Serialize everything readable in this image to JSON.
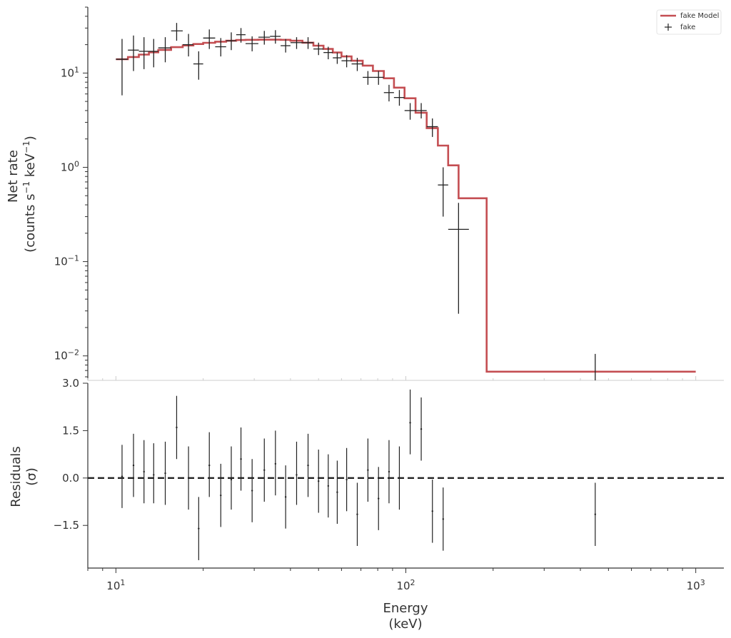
{
  "colors": {
    "model": "#c44e52",
    "data": "#222222",
    "axis": "#333333",
    "zero": "#222222"
  },
  "chart_data": [
    {
      "type": "line",
      "panel": "spectrum",
      "title": "",
      "xlabel": "",
      "ylabel_line1": "Net rate",
      "ylabel_line2": "(counts s$^{-1}$ keV$^{-1}$)",
      "ylabel_line2_display": {
        "pre": "(counts s",
        "sup1": "−1",
        "mid": " keV",
        "sup2": "−1",
        "post": ")"
      },
      "xscale": "log",
      "yscale": "log",
      "xlim": [
        8,
        1250
      ],
      "ylim": [
        0.0055,
        50
      ],
      "yticks": [
        {
          "value": 0.01,
          "base": "10",
          "exp": "−2"
        },
        {
          "value": 0.1,
          "base": "10",
          "exp": "−1"
        },
        {
          "value": 1,
          "base": "10",
          "exp": "0"
        },
        {
          "value": 10,
          "base": "10",
          "exp": "1"
        }
      ],
      "legend": {
        "position": "top-right",
        "entries": [
          "fake Model",
          "fake"
        ]
      },
      "series": [
        {
          "name": "fake Model",
          "kind": "step",
          "edges": [
            10,
            11,
            12,
            13,
            14,
            15.5,
            17,
            18.5,
            20,
            22,
            24,
            26,
            28,
            31,
            34,
            37,
            40,
            44,
            48,
            52,
            56,
            60,
            65,
            71,
            77,
            84,
            91,
            99,
            108,
            118,
            129,
            140,
            152,
            165,
            190,
            1000
          ],
          "values": [
            14.0,
            14.8,
            15.7,
            16.6,
            17.6,
            18.8,
            19.6,
            20.3,
            20.9,
            21.5,
            22.0,
            22.4,
            22.5,
            22.6,
            22.6,
            22.5,
            22.0,
            21.0,
            19.5,
            18.0,
            16.5,
            15.0,
            13.5,
            12.0,
            10.5,
            8.8,
            7.0,
            5.4,
            3.8,
            2.6,
            1.7,
            1.05,
            0.47,
            0.47,
            0.0068
          ]
        },
        {
          "name": "fake",
          "kind": "errorbar",
          "points": [
            {
              "x": 10.5,
              "y": 14.0,
              "xlo": 10.0,
              "xhi": 11.0,
              "ylo": 5.8,
              "yhi": 23.0
            },
            {
              "x": 11.5,
              "y": 17.5,
              "xlo": 11.0,
              "xhi": 12.0,
              "ylo": 10.5,
              "yhi": 25.0
            },
            {
              "x": 12.5,
              "y": 17.0,
              "xlo": 12.0,
              "xhi": 13.0,
              "ylo": 11.0,
              "yhi": 24.0
            },
            {
              "x": 13.5,
              "y": 17.0,
              "xlo": 13.0,
              "xhi": 14.0,
              "ylo": 11.5,
              "yhi": 23.0
            },
            {
              "x": 14.8,
              "y": 18.5,
              "xlo": 14.0,
              "xhi": 15.5,
              "ylo": 13.0,
              "yhi": 24.0
            },
            {
              "x": 16.2,
              "y": 28.0,
              "xlo": 15.5,
              "xhi": 17.0,
              "ylo": 22.0,
              "yhi": 34.0
            },
            {
              "x": 17.8,
              "y": 20.0,
              "xlo": 17.0,
              "xhi": 18.5,
              "ylo": 15.0,
              "yhi": 26.0
            },
            {
              "x": 19.3,
              "y": 12.5,
              "xlo": 18.5,
              "xhi": 20.0,
              "ylo": 8.5,
              "yhi": 17.0
            },
            {
              "x": 21.0,
              "y": 23.5,
              "xlo": 20.0,
              "xhi": 22.0,
              "ylo": 18.0,
              "yhi": 29.0
            },
            {
              "x": 23.0,
              "y": 19.0,
              "xlo": 22.0,
              "xhi": 24.0,
              "ylo": 15.0,
              "yhi": 23.5
            },
            {
              "x": 25.0,
              "y": 22.0,
              "xlo": 24.0,
              "xhi": 26.0,
              "ylo": 17.5,
              "yhi": 27.0
            },
            {
              "x": 27.0,
              "y": 25.5,
              "xlo": 26.0,
              "xhi": 28.0,
              "ylo": 21.0,
              "yhi": 30.0
            },
            {
              "x": 29.5,
              "y": 20.5,
              "xlo": 28.0,
              "xhi": 31.0,
              "ylo": 17.0,
              "yhi": 24.5
            },
            {
              "x": 32.5,
              "y": 24.0,
              "xlo": 31.0,
              "xhi": 34.0,
              "ylo": 20.0,
              "yhi": 28.0
            },
            {
              "x": 35.5,
              "y": 24.5,
              "xlo": 34.0,
              "xhi": 37.0,
              "ylo": 20.5,
              "yhi": 28.5
            },
            {
              "x": 38.5,
              "y": 19.5,
              "xlo": 37.0,
              "xhi": 40.0,
              "ylo": 16.5,
              "yhi": 23.0
            },
            {
              "x": 42.0,
              "y": 21.0,
              "xlo": 40.0,
              "xhi": 44.0,
              "ylo": 18.0,
              "yhi": 24.0
            },
            {
              "x": 46.0,
              "y": 21.0,
              "xlo": 44.0,
              "xhi": 48.0,
              "ylo": 18.0,
              "yhi": 24.0
            },
            {
              "x": 50.0,
              "y": 18.0,
              "xlo": 48.0,
              "xhi": 52.0,
              "ylo": 15.5,
              "yhi": 21.0
            },
            {
              "x": 54.0,
              "y": 16.5,
              "xlo": 52.0,
              "xhi": 56.0,
              "ylo": 14.0,
              "yhi": 19.0
            },
            {
              "x": 58.0,
              "y": 14.5,
              "xlo": 56.0,
              "xhi": 60.0,
              "ylo": 12.5,
              "yhi": 16.5
            },
            {
              "x": 62.5,
              "y": 13.5,
              "xlo": 60.0,
              "xhi": 65.0,
              "ylo": 11.5,
              "yhi": 15.5
            },
            {
              "x": 68.0,
              "y": 12.5,
              "xlo": 65.0,
              "xhi": 71.0,
              "ylo": 10.5,
              "yhi": 14.5
            },
            {
              "x": 74.0,
              "y": 9.0,
              "xlo": 71.0,
              "xhi": 77.0,
              "ylo": 7.5,
              "yhi": 10.5
            },
            {
              "x": 80.5,
              "y": 9.0,
              "xlo": 77.0,
              "xhi": 84.0,
              "ylo": 7.5,
              "yhi": 10.5
            },
            {
              "x": 87.5,
              "y": 6.2,
              "xlo": 84.0,
              "xhi": 91.0,
              "ylo": 5.0,
              "yhi": 7.5
            },
            {
              "x": 95.0,
              "y": 5.5,
              "xlo": 91.0,
              "xhi": 99.0,
              "ylo": 4.5,
              "yhi": 6.6
            },
            {
              "x": 103.5,
              "y": 4.0,
              "xlo": 99.0,
              "xhi": 108.0,
              "ylo": 3.2,
              "yhi": 4.8
            },
            {
              "x": 113.0,
              "y": 4.0,
              "xlo": 108.0,
              "xhi": 118.0,
              "ylo": 3.3,
              "yhi": 4.8
            },
            {
              "x": 123.5,
              "y": 2.7,
              "xlo": 118.0,
              "xhi": 129.0,
              "ylo": 2.1,
              "yhi": 3.3
            },
            {
              "x": 134.5,
              "y": 0.65,
              "xlo": 129.0,
              "xhi": 140.0,
              "ylo": 0.3,
              "yhi": 1.0
            },
            {
              "x": 152.0,
              "y": 0.22,
              "xlo": 140.0,
              "xhi": 165.0,
              "ylo": 0.028,
              "yhi": 0.42
            },
            {
              "x": 450.0,
              "y": 0.0045,
              "xlo": 450.0,
              "xhi": 450.0,
              "ylo": 0.0045,
              "yhi": 0.0105
            }
          ]
        }
      ]
    },
    {
      "type": "scatter",
      "panel": "residuals",
      "title": "",
      "xlabel_line1": "Energy",
      "xlabel_line2": "(keV)",
      "ylabel_line1": "Residuals",
      "ylabel_line2": "(σ)",
      "xscale": "log",
      "xlim": [
        8,
        1250
      ],
      "ylim": [
        -2.85,
        3.0
      ],
      "yticks": [
        {
          "value": -1.5,
          "label": "−1.5"
        },
        {
          "value": 0.0,
          "label": "0.0"
        },
        {
          "value": 1.5,
          "label": "1.5"
        },
        {
          "value": 3.0,
          "label": "3.0"
        }
      ],
      "xticks": [
        {
          "value": 10,
          "base": "10",
          "exp": "1"
        },
        {
          "value": 100,
          "base": "10",
          "exp": "2"
        },
        {
          "value": 1000,
          "base": "10",
          "exp": "3"
        }
      ],
      "zero_line": 0,
      "series": [
        {
          "name": "",
          "points": [
            {
              "x": 10.5,
              "y": 0.05
            },
            {
              "x": 11.5,
              "y": 0.4
            },
            {
              "x": 12.5,
              "y": 0.2
            },
            {
              "x": 13.5,
              "y": 0.1
            },
            {
              "x": 14.8,
              "y": 0.15
            },
            {
              "x": 16.2,
              "y": 1.6
            },
            {
              "x": 17.8,
              "y": 0.0
            },
            {
              "x": 19.3,
              "y": -1.6
            },
            {
              "x": 21.0,
              "y": 0.4
            },
            {
              "x": 23.0,
              "y": -0.55
            },
            {
              "x": 25.0,
              "y": -0.05
            },
            {
              "x": 27.0,
              "y": 0.6
            },
            {
              "x": 29.5,
              "y": -0.4
            },
            {
              "x": 32.5,
              "y": 0.25
            },
            {
              "x": 35.5,
              "y": 0.45
            },
            {
              "x": 38.5,
              "y": -0.6
            },
            {
              "x": 42.0,
              "y": 0.1
            },
            {
              "x": 46.0,
              "y": 0.4
            },
            {
              "x": 50.0,
              "y": -0.1
            },
            {
              "x": 54.0,
              "y": -0.25
            },
            {
              "x": 58.0,
              "y": -0.45
            },
            {
              "x": 62.5,
              "y": -0.05
            },
            {
              "x": 68.0,
              "y": -1.15
            },
            {
              "x": 74.0,
              "y": 0.25
            },
            {
              "x": 80.5,
              "y": -0.65
            },
            {
              "x": 87.5,
              "y": 0.2
            },
            {
              "x": 95.0,
              "y": 0.0
            },
            {
              "x": 103.5,
              "y": 1.75
            },
            {
              "x": 113.0,
              "y": 1.55
            },
            {
              "x": 123.5,
              "y": -1.05
            },
            {
              "x": 134.5,
              "y": -1.3
            },
            {
              "x": 450.0,
              "y": -1.15
            }
          ],
          "errors": [
            {
              "x": 10.5,
              "lo": -0.95,
              "hi": 1.05
            },
            {
              "x": 11.5,
              "lo": -0.6,
              "hi": 1.4
            },
            {
              "x": 12.5,
              "lo": -0.8,
              "hi": 1.2
            },
            {
              "x": 13.5,
              "lo": -0.8,
              "hi": 1.1
            },
            {
              "x": 14.8,
              "lo": -0.85,
              "hi": 1.15
            },
            {
              "x": 16.2,
              "lo": 0.6,
              "hi": 2.6
            },
            {
              "x": 17.8,
              "lo": -1.0,
              "hi": 1.0
            },
            {
              "x": 19.3,
              "lo": -2.6,
              "hi": -0.6
            },
            {
              "x": 21.0,
              "lo": -0.6,
              "hi": 1.45
            },
            {
              "x": 23.0,
              "lo": -1.55,
              "hi": 0.45
            },
            {
              "x": 25.0,
              "lo": -1.0,
              "hi": 1.0
            },
            {
              "x": 27.0,
              "lo": -0.4,
              "hi": 1.6
            },
            {
              "x": 29.5,
              "lo": -1.4,
              "hi": 0.6
            },
            {
              "x": 32.5,
              "lo": -0.75,
              "hi": 1.25
            },
            {
              "x": 35.5,
              "lo": -0.55,
              "hi": 1.5
            },
            {
              "x": 38.5,
              "lo": -1.6,
              "hi": 0.4
            },
            {
              "x": 42.0,
              "lo": -0.85,
              "hi": 1.15
            },
            {
              "x": 46.0,
              "lo": -0.6,
              "hi": 1.4
            },
            {
              "x": 50.0,
              "lo": -1.1,
              "hi": 0.9
            },
            {
              "x": 54.0,
              "lo": -1.25,
              "hi": 0.75
            },
            {
              "x": 58.0,
              "lo": -1.45,
              "hi": 0.55
            },
            {
              "x": 62.5,
              "lo": -1.05,
              "hi": 0.95
            },
            {
              "x": 68.0,
              "lo": -2.15,
              "hi": -0.15
            },
            {
              "x": 74.0,
              "lo": -0.75,
              "hi": 1.25
            },
            {
              "x": 80.5,
              "lo": -1.65,
              "hi": 0.35
            },
            {
              "x": 87.5,
              "lo": -0.8,
              "hi": 1.2
            },
            {
              "x": 95.0,
              "lo": -1.0,
              "hi": 1.0
            },
            {
              "x": 103.5,
              "lo": 0.75,
              "hi": 2.8
            },
            {
              "x": 113.0,
              "lo": 0.55,
              "hi": 2.55
            },
            {
              "x": 123.5,
              "lo": -2.05,
              "hi": -0.05
            },
            {
              "x": 134.5,
              "lo": -2.3,
              "hi": -0.3
            },
            {
              "x": 450.0,
              "lo": -2.15,
              "hi": -0.15
            }
          ]
        }
      ]
    }
  ]
}
